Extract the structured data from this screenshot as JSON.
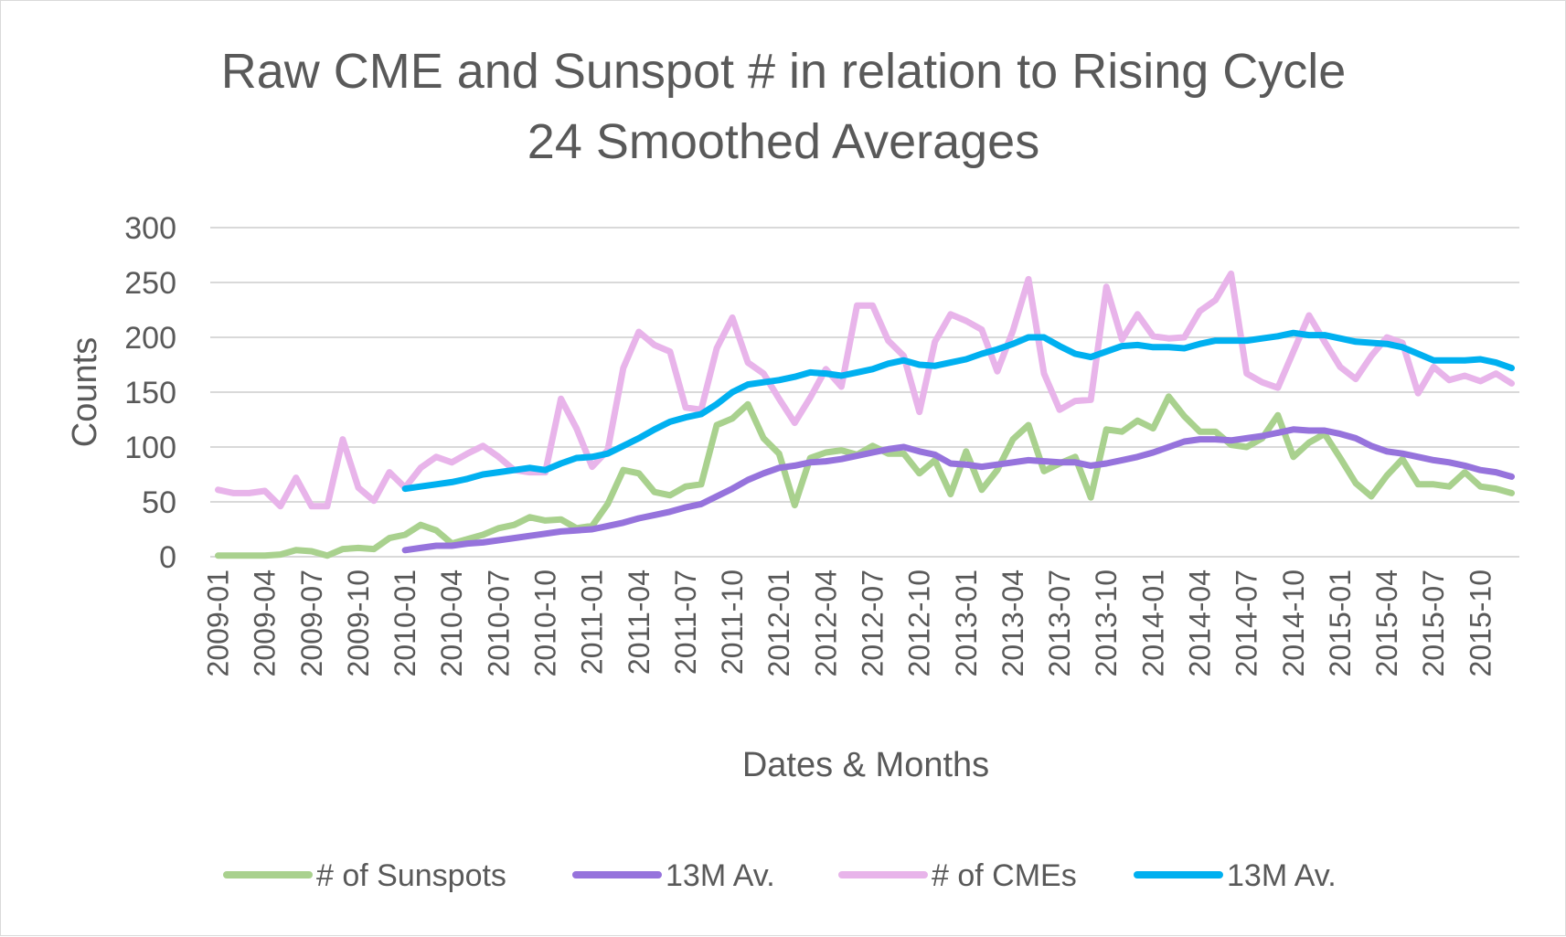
{
  "chart_data": {
    "type": "line",
    "title_line1": "Raw CME and Sunspot # in relation to Rising Cycle",
    "title_line2": "24 Smoothed Averages",
    "xlabel": "Dates & Months",
    "ylabel": "Counts",
    "ylim": [
      0,
      300
    ],
    "yticks": [
      "0",
      "50",
      "100",
      "150",
      "200",
      "250",
      "300"
    ],
    "legend_position": "bottom",
    "x_tick_labels": [
      "2009-01",
      "2009-04",
      "2009-07",
      "2009-10",
      "2010-01",
      "2010-04",
      "2010-07",
      "2010-10",
      "2011-01",
      "2011-04",
      "2011-07",
      "2011-10",
      "2012-01",
      "2012-04",
      "2012-07",
      "2012-10",
      "2013-01",
      "2013-04",
      "2013-07",
      "2013-10",
      "2014-01",
      "2014-04",
      "2014-07",
      "2014-10",
      "2015-01",
      "2015-04",
      "2015-07",
      "2015-10"
    ],
    "series": [
      {
        "name": "# of Sunspots",
        "color": "#a9d18e",
        "start_index": 0,
        "values": [
          1,
          1,
          1,
          1,
          2,
          6,
          5,
          1,
          7,
          8,
          7,
          17,
          20,
          29,
          24,
          12,
          16,
          20,
          26,
          29,
          36,
          33,
          34,
          26,
          28,
          48,
          79,
          76,
          59,
          56,
          64,
          66,
          120,
          126,
          139,
          108,
          94,
          47,
          90,
          95,
          97,
          93,
          101,
          94,
          94,
          76,
          88,
          57,
          96,
          61,
          79,
          107,
          120,
          78,
          85,
          91,
          54,
          116,
          114,
          124,
          117,
          146,
          128,
          114,
          114,
          102,
          100,
          108,
          129,
          91,
          104,
          112,
          90,
          67,
          55,
          74,
          89,
          66,
          66,
          64,
          77,
          64,
          62,
          58
        ]
      },
      {
        "name": "13M Av.",
        "color": "#9673dc",
        "start_index": 12,
        "values": [
          6,
          8,
          10,
          10,
          12,
          13,
          15,
          17,
          19,
          21,
          23,
          24,
          25,
          28,
          31,
          35,
          38,
          41,
          45,
          48,
          55,
          62,
          70,
          76,
          81,
          83,
          86,
          87,
          89,
          92,
          95,
          98,
          100,
          96,
          93,
          85,
          84,
          82,
          84,
          86,
          88,
          87,
          86,
          86,
          83,
          85,
          88,
          91,
          95,
          100,
          105,
          107,
          107,
          106,
          108,
          110,
          113,
          116,
          115,
          115,
          112,
          108,
          101,
          96,
          94,
          91,
          88,
          86,
          83,
          79,
          77,
          73
        ]
      },
      {
        "name": "# of CMEs",
        "color": "#e8b4ea",
        "start_index": 0,
        "values": [
          61,
          58,
          58,
          60,
          46,
          72,
          46,
          46,
          107,
          63,
          51,
          77,
          63,
          81,
          91,
          86,
          94,
          101,
          91,
          79,
          77,
          77,
          144,
          117,
          82,
          97,
          172,
          205,
          193,
          187,
          136,
          134,
          190,
          218,
          177,
          167,
          144,
          122,
          145,
          171,
          155,
          229,
          229,
          197,
          183,
          132,
          196,
          221,
          215,
          207,
          169,
          206,
          253,
          167,
          134,
          142,
          143,
          246,
          198,
          221,
          201,
          199,
          200,
          224,
          234,
          258,
          167,
          159,
          154,
          187,
          220,
          196,
          173,
          162,
          183,
          200,
          195,
          149,
          173,
          161,
          165,
          160,
          167,
          158
        ]
      },
      {
        "name": "13M Av.",
        "color": "#00b0f0",
        "start_index": 12,
        "values": [
          62,
          64,
          66,
          68,
          71,
          75,
          77,
          79,
          81,
          79,
          85,
          90,
          91,
          94,
          101,
          108,
          116,
          123,
          127,
          130,
          139,
          150,
          157,
          159,
          161,
          164,
          168,
          167,
          165,
          168,
          171,
          176,
          179,
          175,
          174,
          177,
          180,
          185,
          189,
          194,
          200,
          200,
          192,
          185,
          182,
          187,
          192,
          193,
          191,
          191,
          190,
          194,
          197,
          197,
          197,
          199,
          201,
          204,
          202,
          202,
          199,
          196,
          195,
          194,
          191,
          185,
          179,
          179,
          179,
          180,
          177,
          172
        ]
      }
    ]
  }
}
